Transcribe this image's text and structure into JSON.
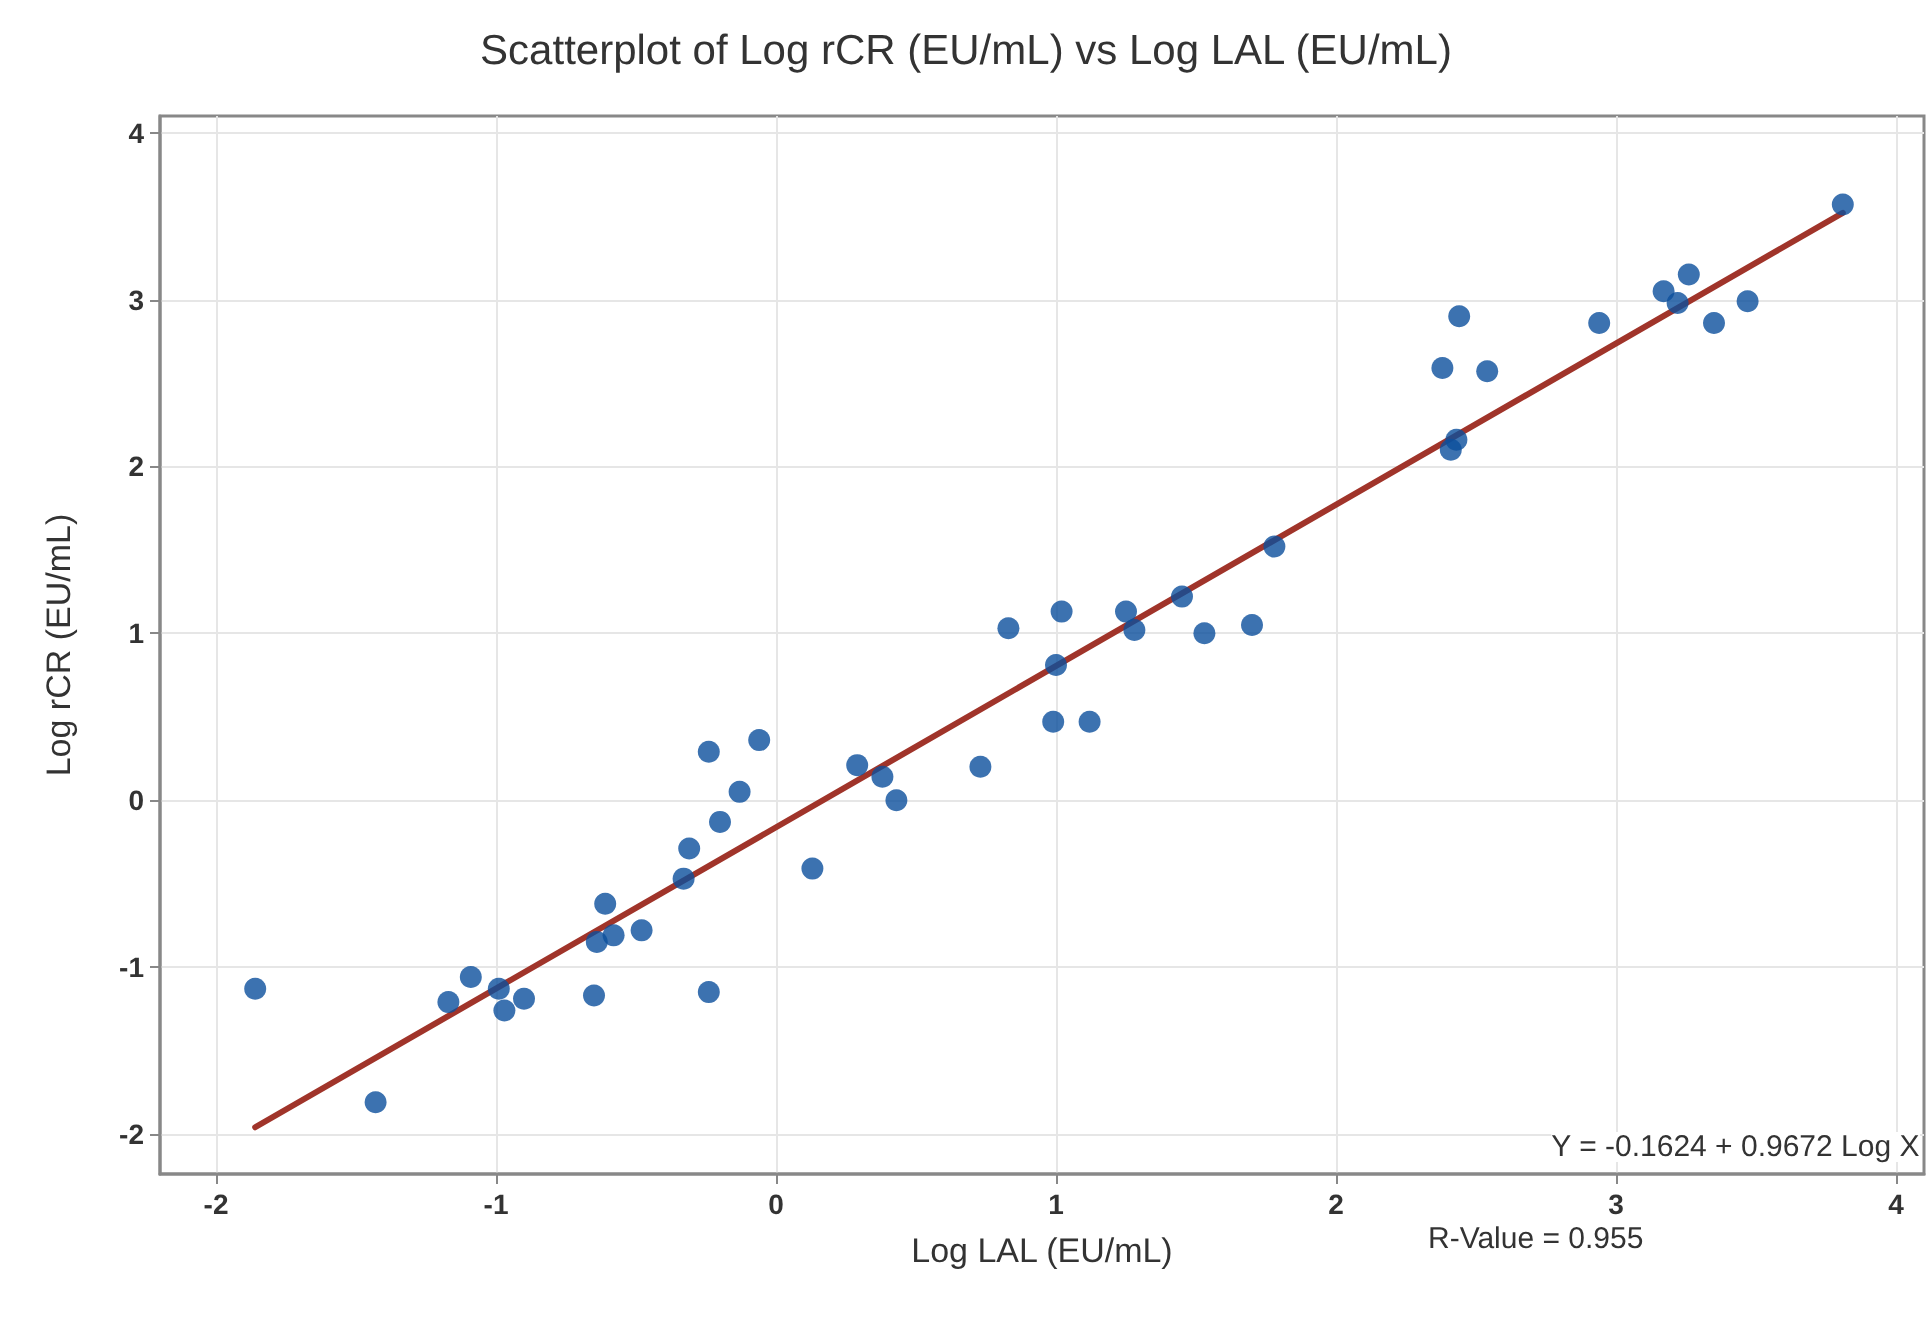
{
  "chart_data": {
    "type": "scatter",
    "title": "Scatterplot of Log rCR (EU/mL) vs Log LAL (EU/mL)",
    "xlabel": "Log LAL (EU/mL)",
    "ylabel": "Log rCR (EU/mL)",
    "annotations": [
      "Y = -0.1624 + 0.9672 Log X",
      "R-Value = 0.955"
    ],
    "xlim": [
      -2.2,
      4.1
    ],
    "ylim": [
      -2.24,
      4.1
    ],
    "xticks": [
      -2,
      -1,
      0,
      1,
      2,
      3,
      4
    ],
    "yticks": [
      -2,
      -1,
      0,
      1,
      2,
      3,
      4
    ],
    "grid": true,
    "series": [
      {
        "marker": "circle",
        "color": "#0b4f9c",
        "x": [
          -1.86,
          -1.43,
          -1.17,
          -1.09,
          -0.99,
          -0.97,
          -0.9,
          -0.65,
          -0.64,
          -0.61,
          -0.58,
          -0.48,
          -0.24,
          -0.33,
          -0.31,
          -0.2,
          -0.13,
          -0.24,
          -0.06,
          0.13,
          0.29,
          0.38,
          0.43,
          0.73,
          0.83,
          0.99,
          1.12,
          1.0,
          1.02,
          1.25,
          1.28,
          1.45,
          1.53,
          1.7,
          1.78,
          2.41,
          2.43,
          2.38,
          2.44,
          2.54,
          2.94,
          3.17,
          3.22,
          3.26,
          3.35,
          3.47,
          3.81
        ],
        "values": [
          -1.13,
          -1.81,
          -1.21,
          -1.06,
          -1.13,
          -1.26,
          -1.19,
          -1.17,
          -0.85,
          -0.62,
          -0.81,
          -0.78,
          -1.15,
          -0.47,
          -0.29,
          -0.13,
          0.05,
          0.29,
          0.36,
          -0.41,
          0.21,
          0.14,
          0.0,
          0.2,
          1.03,
          0.47,
          0.47,
          0.81,
          1.13,
          1.13,
          1.02,
          1.22,
          1.0,
          1.05,
          1.52,
          2.1,
          2.16,
          2.59,
          2.9,
          2.57,
          2.86,
          3.05,
          2.98,
          3.15,
          2.86,
          2.99,
          3.57
        ]
      },
      {
        "type": "line",
        "color": "#a0342a",
        "x": [
          -1.86,
          3.81
        ],
        "values": [
          -1.96,
          3.52
        ]
      }
    ]
  }
}
